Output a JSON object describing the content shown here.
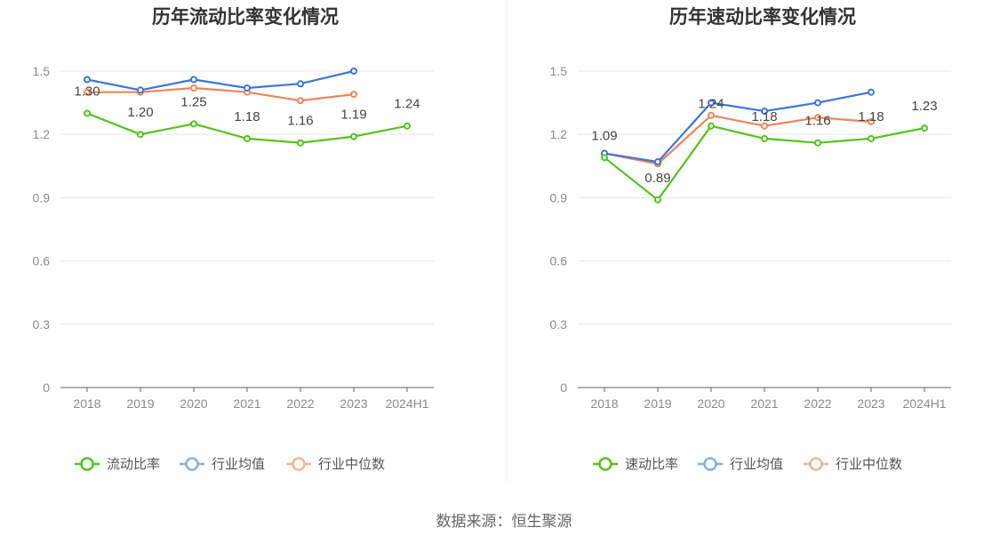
{
  "colors": {
    "primary": "#52c41a",
    "industry_avg": "#3a76d9",
    "industry_median": "#f08457",
    "legend_avg": "#8aaee6",
    "legend_median": "#f7b29a",
    "grid": "#e3e7ee",
    "axis": "#666666",
    "divider": "#e8e8e8"
  },
  "source": "数据来源：恒生聚源",
  "chart_data": [
    {
      "type": "line",
      "title": "历年流动比率变化情况",
      "categories": [
        "2018",
        "2019",
        "2020",
        "2021",
        "2022",
        "2023",
        "2024H1"
      ],
      "ylim": [
        0,
        1.5
      ],
      "yticks": [
        "0",
        "0.3",
        "0.6",
        "0.9",
        "1.2",
        "1.5"
      ],
      "grid": true,
      "legend_position": "bottom",
      "series": [
        {
          "name": "流动比率",
          "values": [
            1.3,
            1.2,
            1.25,
            1.18,
            1.16,
            1.19,
            1.24
          ],
          "labels": [
            "1.30",
            "1.20",
            "1.25",
            "1.18",
            "1.16",
            "1.19",
            "1.24"
          ]
        },
        {
          "name": "行业均值",
          "values": [
            1.46,
            1.41,
            1.46,
            1.42,
            1.44,
            1.5,
            null
          ]
        },
        {
          "name": "行业中位数",
          "values": [
            1.4,
            1.4,
            1.42,
            1.4,
            1.36,
            1.39,
            null
          ]
        }
      ]
    },
    {
      "type": "line",
      "title": "历年速动比率变化情况",
      "categories": [
        "2018",
        "2019",
        "2020",
        "2021",
        "2022",
        "2023",
        "2024H1"
      ],
      "ylim": [
        0,
        1.5
      ],
      "yticks": [
        "0",
        "0.3",
        "0.6",
        "0.9",
        "1.2",
        "1.5"
      ],
      "grid": true,
      "legend_position": "bottom",
      "series": [
        {
          "name": "速动比率",
          "values": [
            1.09,
            0.89,
            1.24,
            1.18,
            1.16,
            1.18,
            1.23
          ],
          "labels": [
            "1.09",
            "0.89",
            "1.24",
            "1.18",
            "1.16",
            "1.18",
            "1.23"
          ]
        },
        {
          "name": "行业均值",
          "values": [
            1.11,
            1.07,
            1.35,
            1.31,
            1.35,
            1.4,
            null
          ]
        },
        {
          "name": "行业中位数",
          "values": [
            1.11,
            1.06,
            1.29,
            1.24,
            1.28,
            1.26,
            null
          ]
        }
      ]
    }
  ]
}
